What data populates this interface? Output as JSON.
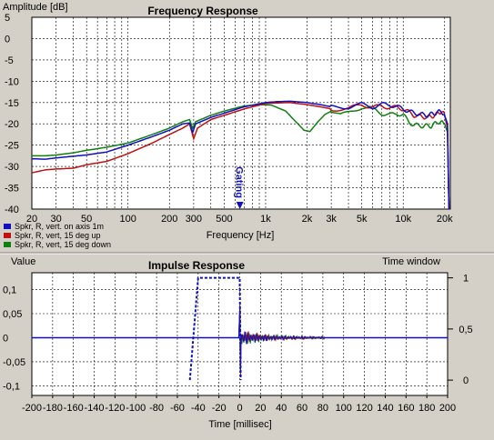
{
  "chart_data": [
    {
      "type": "line",
      "title": "Frequency Response",
      "ylabel": "Amplitude [dB]",
      "xlabel": "Frequency [Hz]",
      "xscale": "log",
      "xlim": [
        20,
        22000
      ],
      "ylim": [
        -40,
        5
      ],
      "yticks": [
        5,
        0,
        -5,
        -10,
        -15,
        -20,
        -25,
        -30,
        -35,
        -40
      ],
      "xticks": [
        {
          "v": 20,
          "label": "20"
        },
        {
          "v": 30,
          "label": "30"
        },
        {
          "v": 50,
          "label": "50"
        },
        {
          "v": 100,
          "label": "100"
        },
        {
          "v": 200,
          "label": "200"
        },
        {
          "v": 300,
          "label": "300"
        },
        {
          "v": 500,
          "label": "500"
        },
        {
          "v": 1000,
          "label": "1k"
        },
        {
          "v": 2000,
          "label": "2k"
        },
        {
          "v": 3000,
          "label": "3k"
        },
        {
          "v": 5000,
          "label": "5k"
        },
        {
          "v": 10000,
          "label": "10k"
        },
        {
          "v": 20000,
          "label": "20k"
        }
      ],
      "grid": true,
      "marker": {
        "label": "Gating",
        "x": 650
      },
      "legend_position": "bottom-left",
      "series": [
        {
          "name": "Spkr, R, vert. on axis 1m",
          "color": "#1010c0",
          "points": [
            [
              20,
              -28.2
            ],
            [
              25,
              -28.3
            ],
            [
              30,
              -28
            ],
            [
              40,
              -27.6
            ],
            [
              50,
              -27.3
            ],
            [
              70,
              -26.6
            ],
            [
              100,
              -25
            ],
            [
              150,
              -23
            ],
            [
              200,
              -21.5
            ],
            [
              250,
              -20
            ],
            [
              280,
              -19.8
            ],
            [
              295,
              -22
            ],
            [
              310,
              -20
            ],
            [
              400,
              -18.5
            ],
            [
              500,
              -17.5
            ],
            [
              700,
              -16
            ],
            [
              1000,
              -15
            ],
            [
              1200,
              -14.8
            ],
            [
              1500,
              -14.7
            ],
            [
              2000,
              -15
            ],
            [
              2500,
              -15.5
            ],
            [
              3000,
              -16
            ],
            [
              4000,
              -16
            ],
            [
              5000,
              -15.5
            ],
            [
              6000,
              -16
            ],
            [
              7000,
              -15.5
            ],
            [
              8000,
              -15.5
            ],
            [
              10000,
              -16.5
            ],
            [
              12000,
              -17.5
            ],
            [
              15000,
              -18
            ],
            [
              17000,
              -17.5
            ],
            [
              19000,
              -17
            ],
            [
              20000,
              -18
            ],
            [
              21000,
              -20
            ],
            [
              21500,
              -40
            ]
          ]
        },
        {
          "name": "Spkr, R, vert, 15 deg up",
          "color": "#c01010",
          "points": [
            [
              20,
              -31.5
            ],
            [
              25,
              -30.8
            ],
            [
              30,
              -30.6
            ],
            [
              40,
              -30.4
            ],
            [
              50,
              -29.6
            ],
            [
              70,
              -28.8
            ],
            [
              100,
              -27
            ],
            [
              150,
              -24.5
            ],
            [
              200,
              -22.5
            ],
            [
              250,
              -21
            ],
            [
              280,
              -20
            ],
            [
              300,
              -23.5
            ],
            [
              320,
              -21
            ],
            [
              400,
              -19
            ],
            [
              500,
              -18
            ],
            [
              700,
              -16.5
            ],
            [
              1000,
              -15.2
            ],
            [
              1500,
              -15
            ],
            [
              2000,
              -15.5
            ],
            [
              2500,
              -16
            ],
            [
              3000,
              -16.5
            ],
            [
              4000,
              -16.5
            ],
            [
              5000,
              -15.5
            ],
            [
              6000,
              -16
            ],
            [
              7000,
              -16
            ],
            [
              8000,
              -16
            ],
            [
              10000,
              -16.5
            ],
            [
              12000,
              -18
            ],
            [
              15000,
              -18.5
            ],
            [
              17000,
              -18
            ],
            [
              19000,
              -17
            ],
            [
              20000,
              -18
            ],
            [
              21000,
              -21
            ],
            [
              21500,
              -40
            ]
          ]
        },
        {
          "name": "Spkr, R, vert, 15 deg down",
          "color": "#108010",
          "points": [
            [
              20,
              -27.5
            ],
            [
              25,
              -27.5
            ],
            [
              30,
              -27.3
            ],
            [
              40,
              -26.8
            ],
            [
              50,
              -26.2
            ],
            [
              70,
              -25.5
            ],
            [
              100,
              -24.5
            ],
            [
              150,
              -22.5
            ],
            [
              200,
              -21
            ],
            [
              250,
              -19.5
            ],
            [
              280,
              -19
            ],
            [
              295,
              -21
            ],
            [
              310,
              -19.5
            ],
            [
              400,
              -18
            ],
            [
              500,
              -17
            ],
            [
              700,
              -15.8
            ],
            [
              900,
              -15.5
            ],
            [
              1100,
              -15.6
            ],
            [
              1400,
              -17
            ],
            [
              1600,
              -19
            ],
            [
              1900,
              -21.5
            ],
            [
              2100,
              -21.8
            ],
            [
              2400,
              -19.5
            ],
            [
              2700,
              -17.8
            ],
            [
              3000,
              -17
            ],
            [
              3500,
              -18
            ],
            [
              4000,
              -17.5
            ],
            [
              5000,
              -16
            ],
            [
              6000,
              -16.5
            ],
            [
              7000,
              -17.5
            ],
            [
              8000,
              -18
            ],
            [
              9000,
              -17.5
            ],
            [
              10000,
              -18
            ],
            [
              11000,
              -19.5
            ],
            [
              12000,
              -20.3
            ],
            [
              14000,
              -20.5
            ],
            [
              16000,
              -20.5
            ],
            [
              18000,
              -19.5
            ],
            [
              20000,
              -20
            ],
            [
              21000,
              -22
            ],
            [
              21500,
              -40
            ]
          ]
        }
      ]
    },
    {
      "type": "line",
      "title": "Impulse Response",
      "ylabel": "Value",
      "y2label": "Time window",
      "xlabel": "Time [millisec]",
      "xlim": [
        -200,
        200
      ],
      "ylim": [
        -0.12,
        0.135
      ],
      "y2lim": [
        -0.15,
        1.05
      ],
      "yticks": [
        {
          "v": 0.1,
          "label": "0,1"
        },
        {
          "v": 0.05,
          "label": "0,05"
        },
        {
          "v": 0,
          "label": "0"
        },
        {
          "v": -0.05,
          "label": "-0,05"
        },
        {
          "v": -0.1,
          "label": "-0,1"
        }
      ],
      "y2ticks": [
        {
          "v": 1,
          "label": "1"
        },
        {
          "v": 0.5,
          "label": "0,5"
        },
        {
          "v": 0,
          "label": "0"
        }
      ],
      "xticks": [
        -200,
        -180,
        -160,
        -140,
        -120,
        -100,
        -80,
        -60,
        -40,
        -20,
        0,
        20,
        40,
        60,
        80,
        100,
        120,
        140,
        160,
        180,
        200
      ],
      "grid": true,
      "time_window": {
        "color": "#1010c0",
        "points": [
          [
            -48,
            0
          ],
          [
            -40,
            1
          ],
          [
            0,
            1
          ],
          [
            1,
            0
          ]
        ]
      },
      "impulse": {
        "color": "#1010c0",
        "secondary_colors": [
          "#108010",
          "#c01010"
        ],
        "onset_ms": 0,
        "end_ms": 82,
        "peak": 0.072,
        "trough": -0.082
      }
    }
  ],
  "panel": {
    "top_ylabel": "Amplitude [dB]",
    "legend_items": [
      {
        "label": "Spkr, R, vert. on axis 1m",
        "color": "#1010c0"
      },
      {
        "label": "Spkr, R, vert, 15 deg up",
        "color": "#c01010"
      },
      {
        "label": "Spkr, R, vert, 15 deg down",
        "color": "#108010"
      }
    ]
  }
}
